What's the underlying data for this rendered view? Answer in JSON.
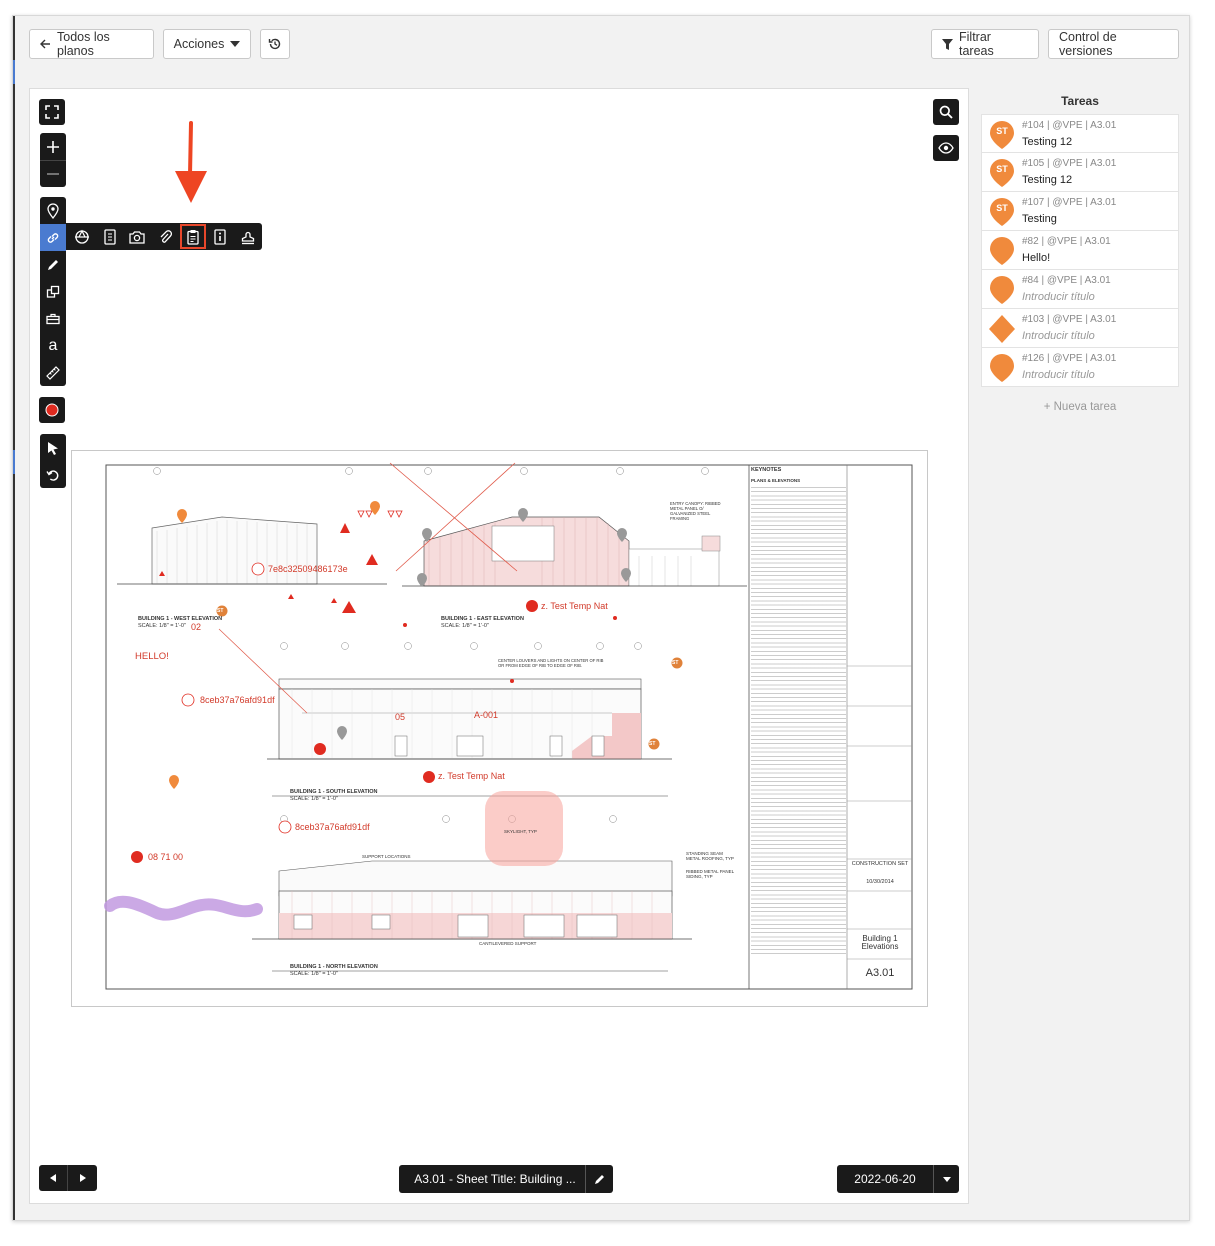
{
  "toolbar": {
    "back_label": "Todos los planos",
    "actions_label": "Acciones",
    "filter_label": "Filtrar tareas",
    "versions_label": "Control de versiones"
  },
  "tasks": {
    "title": "Tareas",
    "items": [
      {
        "meta": "#104 | @VPE | A3.01",
        "title": "Testing 12",
        "badge": "ST",
        "shape": "pin",
        "placeholder": false
      },
      {
        "meta": "#105 | @VPE | A3.01",
        "title": "Testing 12",
        "badge": "ST",
        "shape": "pin",
        "placeholder": false
      },
      {
        "meta": "#107 | @VPE | A3.01",
        "title": "Testing",
        "badge": "ST",
        "shape": "pin",
        "placeholder": false
      },
      {
        "meta": "#82 | @VPE | A3.01",
        "title": "Hello!",
        "badge": "",
        "shape": "pin",
        "placeholder": false
      },
      {
        "meta": "#84 | @VPE | A3.01",
        "title": "Introducir título",
        "badge": "",
        "shape": "pin",
        "placeholder": true
      },
      {
        "meta": "#103 | @VPE | A3.01",
        "title": "Introducir título",
        "badge": "",
        "shape": "diamond",
        "placeholder": true
      },
      {
        "meta": "#126 | @VPE | A3.01",
        "title": "Introducir título",
        "badge": "",
        "shape": "pin",
        "placeholder": true
      }
    ],
    "new_task_label": "+ Nueva tarea",
    "marker_color": "#f08a3c"
  },
  "viewer": {
    "sheet_label": "A3.01 - Sheet Title: Building ...",
    "date_label": "2022-06-20"
  },
  "drawing": {
    "annotations": {
      "id1": "7e8c32509486173e",
      "id2": "8ceb37a76afd91df",
      "id3": "8ceb37a76afd91df",
      "temp1": "z. Test Temp Nat",
      "temp2": "z. Test Temp Nat",
      "hello": "HELLO!",
      "n02": "02",
      "n05": "05",
      "a001": "A-001",
      "code": "08 71 00",
      "st": "ST"
    },
    "elevations": {
      "west": "BUILDING 1 - WEST ELEVATION",
      "east": "BUILDING 1 - EAST ELEVATION",
      "south": "BUILDING 1 - SOUTH ELEVATION",
      "north": "BUILDING 1 - NORTH ELEVATION",
      "scale": "SCALE: 1/8\" = 1'-0\""
    },
    "title_block": {
      "keynotes": "KEYNOTES",
      "plans": "PLANS & ELEVATIONS",
      "status": "CONSTRUCTION SET",
      "date": "10/30/2014",
      "sheet_title": "Building 1 Elevations",
      "sheet_no": "A3.01"
    },
    "notes": {
      "skylight": "SKYLIGHT, TYP",
      "support": "SUPPORT LOCATIONS",
      "canopy": "CANTILEVERED SUPPORT",
      "seam": "STANDING SEAM METAL ROOFING, TYP",
      "panel": "RIBBED METAL PANEL SIDING, TYP",
      "entry": "ENTRY CANOPY: RIBBED METAL PANEL O/ GALVANIZED STEEL FRAMING",
      "louvers": "CENTER LOUVERS AND LIGHTS ON CENTER OF RIB OR FROM EDGE OF RIB TO EDGE OF RIB."
    }
  }
}
